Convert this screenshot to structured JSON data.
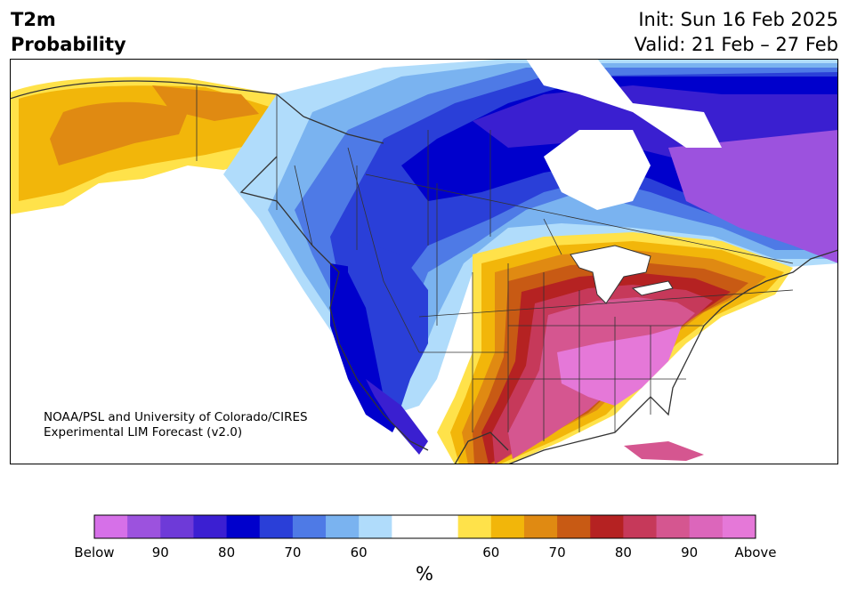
{
  "header": {
    "variable": "T2m",
    "product": "Probability",
    "init": "Init: Sun 16 Feb 2025",
    "valid": "Valid: 21 Feb – 27 Feb"
  },
  "credit": {
    "line1": "NOAA/PSL and University of Colorado/CIRES",
    "line2": "Experimental LIM Forecast (v2.0)"
  },
  "colorbar": {
    "unit": "%",
    "colors": [
      "#d670e8",
      "#9c52de",
      "#6e3ad8",
      "#3b1fd2",
      "#0000cc",
      "#2a3fd8",
      "#4e7ae6",
      "#7ab3f0",
      "#b0dcfb",
      "#ffffff",
      "#ffffff",
      "#ffe24a",
      "#f2b60a",
      "#e08a12",
      "#c85a14",
      "#b52222",
      "#c6395a",
      "#d55690",
      "#dc66bb",
      "#e578d8"
    ],
    "ticks": [
      {
        "label": "Below",
        "index": 0
      },
      {
        "label": "90",
        "index": 2
      },
      {
        "label": "80",
        "index": 4
      },
      {
        "label": "70",
        "index": 6
      },
      {
        "label": "60",
        "index": 8
      },
      {
        "label": "60",
        "index": 12
      },
      {
        "label": "70",
        "index": 14
      },
      {
        "label": "80",
        "index": 16
      },
      {
        "label": "90",
        "index": 18
      },
      {
        "label": "Above",
        "index": 20
      }
    ]
  },
  "map": {
    "region": "North America",
    "colors": {
      "below_strong": "#3a1fd0",
      "below_dark": "#0000cc",
      "below_mid": "#2a3fd8",
      "below_light": "#4e7ae6",
      "below_pale": "#7ab3f0",
      "below_faint": "#b0dcfb",
      "below_violet": "#9c52de",
      "above_yellow": "#ffe24a",
      "above_gold": "#f2b60a",
      "above_orange": "#e08a12",
      "above_rust": "#c85a14",
      "above_red": "#b52222",
      "above_rose": "#c6395a",
      "above_pink": "#d55690",
      "above_magenta": "#e578d8",
      "boundary": "#333333"
    }
  }
}
